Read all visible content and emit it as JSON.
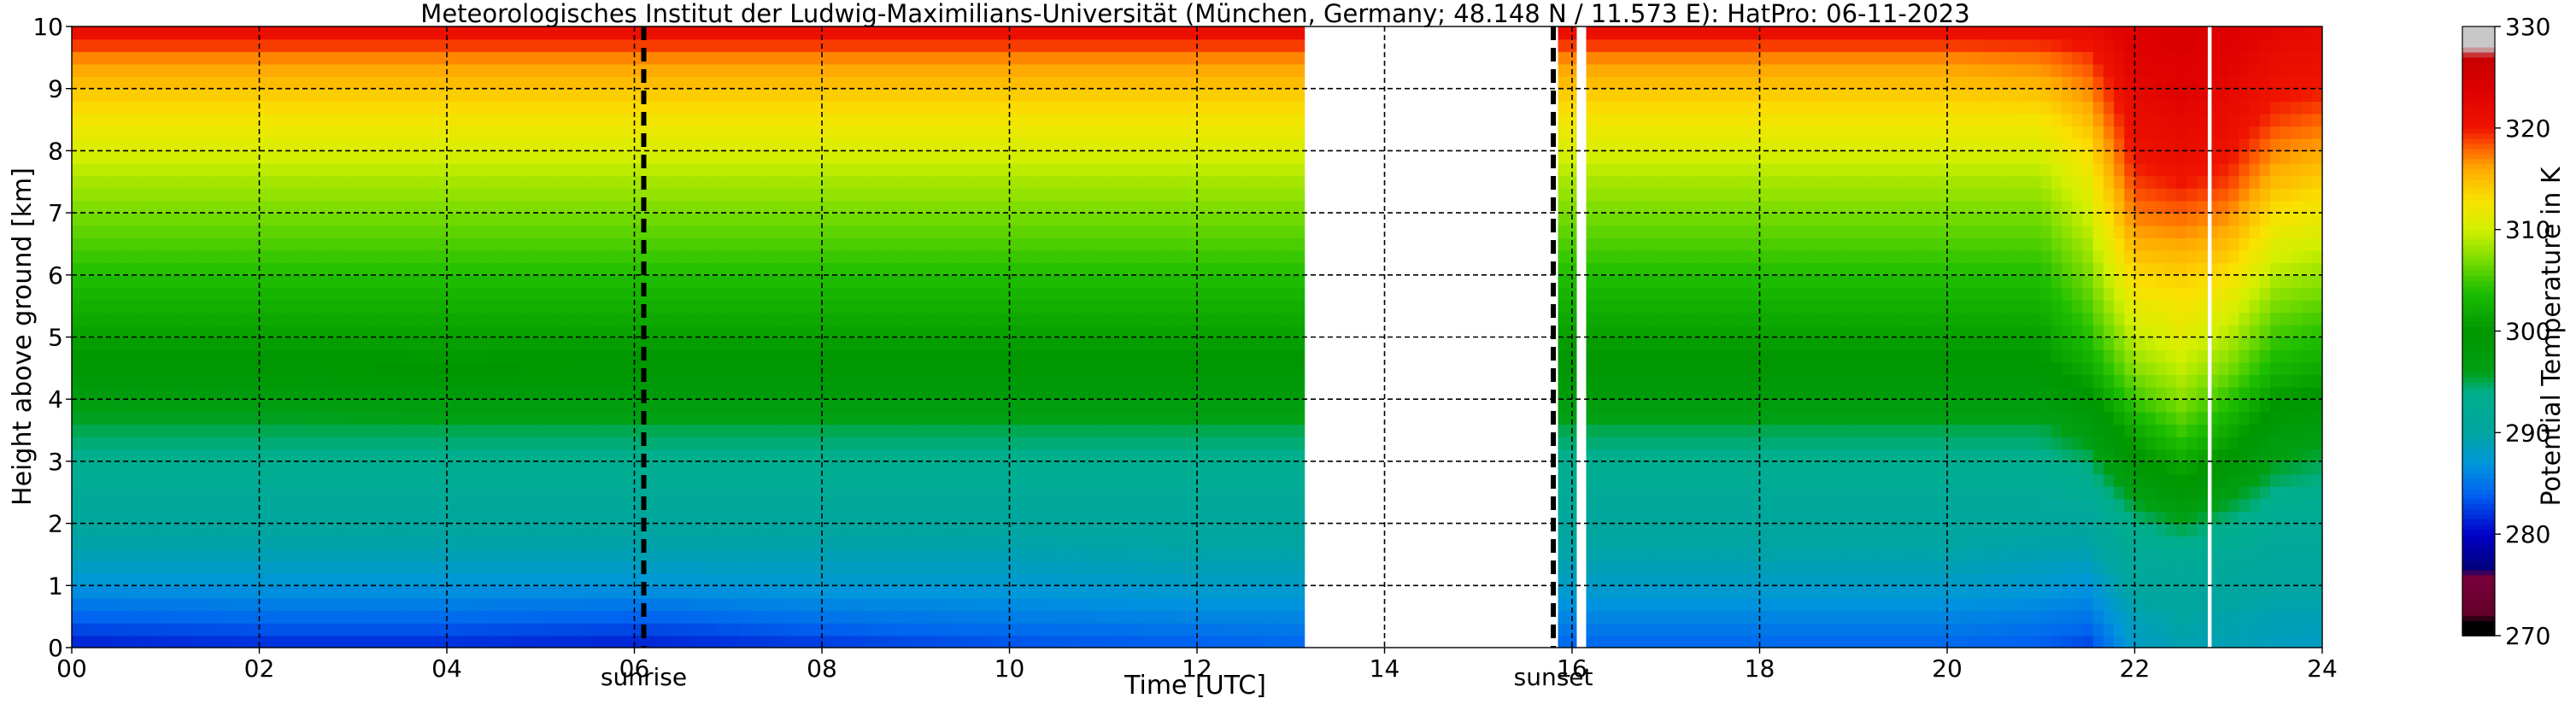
{
  "chart_data": {
    "type": "heatmap",
    "title": "Meteorologisches Institut der Ludwig-Maximilians-Universität (München, Germany; 48.148 N / 11.573 E):    HatPro: 06-11-2023",
    "xlabel": "Time [UTC]",
    "ylabel": "Height above ground [km]",
    "x_range": [
      0,
      24
    ],
    "y_range": [
      0,
      10
    ],
    "x_ticks": [
      0,
      2,
      4,
      6,
      8,
      10,
      12,
      14,
      16,
      18,
      20,
      22,
      24
    ],
    "x_tick_labels": [
      "00",
      "02",
      "04",
      "06",
      "08",
      "10",
      "12",
      "14",
      "16",
      "18",
      "20",
      "22",
      "24"
    ],
    "y_ticks": [
      0,
      1,
      2,
      3,
      4,
      5,
      6,
      7,
      8,
      9,
      10
    ],
    "y_tick_labels": [
      "0",
      "1",
      "2",
      "3",
      "4",
      "5",
      "6",
      "7",
      "8",
      "9",
      "10"
    ],
    "grid": true,
    "colorbar": {
      "label": "Potential Temperature in K",
      "range": [
        270,
        330
      ],
      "ticks": [
        270,
        280,
        290,
        300,
        310,
        320,
        330
      ],
      "tick_labels": [
        "270",
        "280",
        "290",
        "300",
        "310",
        "320",
        "330"
      ]
    },
    "data_gaps": [
      [
        13.15,
        15.85
      ],
      [
        16.05,
        16.15
      ],
      [
        22.78,
        22.82
      ]
    ],
    "annotations": [
      {
        "x": 6.1,
        "text": "sunrise"
      },
      {
        "x": 15.8,
        "text": "sunset"
      }
    ],
    "profile_heights_km": [
      0,
      0.5,
      1,
      1.5,
      2,
      2.5,
      3,
      3.5,
      4,
      4.5,
      5,
      5.5,
      6,
      6.5,
      7,
      7.5,
      8,
      8.5,
      9,
      9.5,
      10
    ],
    "profile_times_utc": [
      0,
      2,
      4,
      6,
      8,
      10,
      12,
      13,
      16,
      17,
      18,
      20,
      21,
      21.5,
      22,
      22.5,
      23,
      23.5,
      24
    ],
    "potential_temperature_K": [
      [
        281,
        284,
        287,
        289,
        290.5,
        292,
        293.5,
        295,
        297,
        299.5,
        301,
        302.5,
        304,
        305.5,
        307,
        308.5,
        310.5,
        312.5,
        314.5,
        317,
        322
      ],
      [
        281.5,
        284.5,
        287,
        289,
        290.5,
        292,
        293.5,
        295,
        297,
        299.5,
        301,
        302.5,
        304,
        305.5,
        307,
        308.5,
        310.5,
        312.5,
        314.5,
        317,
        322
      ],
      [
        281.5,
        284.5,
        287,
        289,
        290.5,
        292,
        293.5,
        295,
        297.5,
        300,
        301,
        302.5,
        304,
        305.5,
        307,
        308.5,
        310.5,
        312.5,
        314.5,
        317,
        322
      ],
      [
        281,
        284,
        287,
        289,
        290.5,
        292,
        293.5,
        295,
        297.5,
        299.5,
        301,
        302.5,
        304,
        305.5,
        307,
        308.5,
        310.5,
        312.5,
        314.5,
        317,
        322
      ],
      [
        282,
        285,
        287.5,
        289,
        290.5,
        292,
        293.5,
        295,
        297.5,
        299.5,
        301,
        302.5,
        304,
        305.5,
        307,
        308.5,
        310.5,
        312.5,
        314.5,
        317,
        322
      ],
      [
        283,
        285.5,
        287.5,
        289,
        290.5,
        292,
        293.5,
        295,
        297.5,
        299.5,
        301,
        302.5,
        304,
        305.5,
        307,
        308.5,
        310.5,
        312.5,
        314.5,
        317,
        322
      ],
      [
        283.5,
        286,
        288,
        289.5,
        290.5,
        292,
        293.5,
        295,
        297.5,
        299.5,
        301,
        302.5,
        304,
        305.5,
        307,
        308.5,
        310.5,
        312.5,
        314.5,
        317,
        322
      ],
      [
        284,
        286,
        288,
        289.5,
        290.5,
        292,
        293.5,
        295,
        297.5,
        299.5,
        301,
        302.5,
        304,
        305.5,
        307,
        308.5,
        310.5,
        312.5,
        314.5,
        317,
        322
      ],
      [
        284,
        286,
        288,
        289.5,
        290.5,
        292,
        293.5,
        295,
        297.5,
        299.5,
        301,
        302.5,
        304,
        305.5,
        307,
        308.5,
        310.5,
        312.5,
        314.5,
        317,
        322
      ],
      [
        284,
        286,
        288,
        289.5,
        290.5,
        292,
        293.5,
        295,
        297.5,
        299.5,
        301,
        302.5,
        304,
        305.5,
        307,
        308.5,
        310.5,
        312.5,
        314.5,
        317,
        322
      ],
      [
        284,
        286,
        288,
        289.5,
        290.5,
        292,
        293.5,
        295,
        297.5,
        299.5,
        301,
        302.5,
        304,
        305.5,
        307,
        308.5,
        310.5,
        312.5,
        314.5,
        317,
        322
      ],
      [
        284,
        286,
        288,
        289.5,
        290.5,
        292,
        293.5,
        295,
        297.5,
        299.5,
        301,
        302.5,
        304,
        305.5,
        307,
        308.5,
        310.5,
        312.5,
        314.5,
        317,
        322
      ],
      [
        283.5,
        285.5,
        287.5,
        289,
        290.5,
        292,
        293.5,
        295,
        297.5,
        299.5,
        301,
        302.5,
        304,
        305.5,
        307,
        308.5,
        310.5,
        312.5,
        315,
        317.5,
        322
      ],
      [
        282.5,
        285,
        287,
        289,
        290.5,
        292.5,
        294.5,
        297,
        299.5,
        302,
        304,
        305.5,
        307,
        308.5,
        310,
        311.5,
        313,
        315,
        317,
        319,
        322
      ],
      [
        288,
        289,
        290.5,
        292,
        294,
        296.5,
        299.5,
        302,
        305,
        307.5,
        309.5,
        311.5,
        313.5,
        315.5,
        317.5,
        319,
        320.5,
        321.5,
        322.5,
        323.5,
        324
      ],
      [
        289,
        290,
        291,
        292.5,
        295.5,
        299,
        302,
        305,
        307.5,
        309.5,
        311,
        312.5,
        314,
        316,
        318,
        320,
        321.5,
        322.5,
        323.5,
        324,
        324.5
      ],
      [
        289,
        289.5,
        290.5,
        292,
        294,
        296.5,
        299.5,
        302,
        304.5,
        307,
        309,
        311,
        313,
        315,
        317,
        319,
        320.5,
        321.5,
        322.5,
        323.5,
        324
      ],
      [
        288.5,
        289,
        290,
        291,
        292.5,
        294,
        296,
        298,
        300.5,
        303,
        305,
        307,
        309,
        311,
        313,
        315,
        317,
        319,
        320.5,
        321.5,
        323
      ],
      [
        288,
        289,
        290,
        291,
        292,
        293.5,
        295,
        297,
        299.5,
        302,
        304,
        306,
        308,
        310,
        312,
        314,
        316,
        318,
        320,
        321,
        322
      ]
    ]
  }
}
